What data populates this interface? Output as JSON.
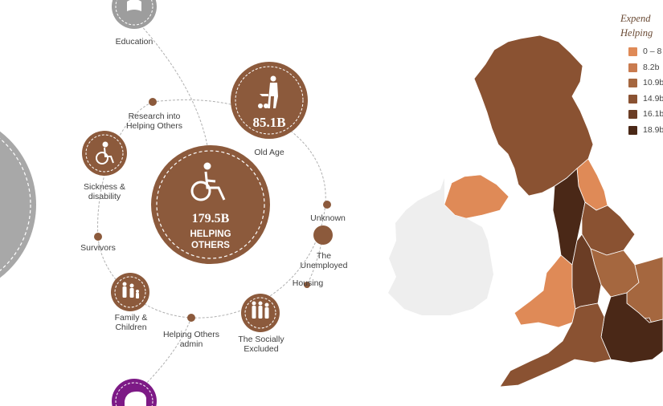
{
  "center": {
    "value": "179.5B",
    "title_line1": "HELPING",
    "title_line2": "OTHERS"
  },
  "old_age": {
    "value": "85.1B",
    "label": "Old Age"
  },
  "nodes": {
    "education": "Education",
    "research": "Research into\nHelping Others",
    "sickness": "Sickness &\ndisability",
    "survivors": "Survivors",
    "family": "Family &\nChildren",
    "admin": "Helping Others\nadmin",
    "socially_excluded": "The Socially\nExcluded",
    "housing": "Housing",
    "unemployed": "The\nUnemployed",
    "unknown": "Unknown"
  },
  "legend": {
    "title_line1": "Expend",
    "title_line2": "Helping",
    "items": [
      {
        "label": "0 – 8",
        "color": "#df8a57"
      },
      {
        "label": "8.2b",
        "color": "#c97b4f"
      },
      {
        "label": "10.9b",
        "color": "#a5673f"
      },
      {
        "label": "14.9b",
        "color": "#8a5232"
      },
      {
        "label": "16.1b",
        "color": "#6b3d25"
      },
      {
        "label": "18.9b",
        "color": "#4a2817"
      }
    ]
  },
  "colors": {
    "circle_brown": "#8c5a3c",
    "education_grey": "#9d9d9d",
    "bottom_purple": "#7d1a86",
    "ireland_grey": "#eeeeee"
  }
}
